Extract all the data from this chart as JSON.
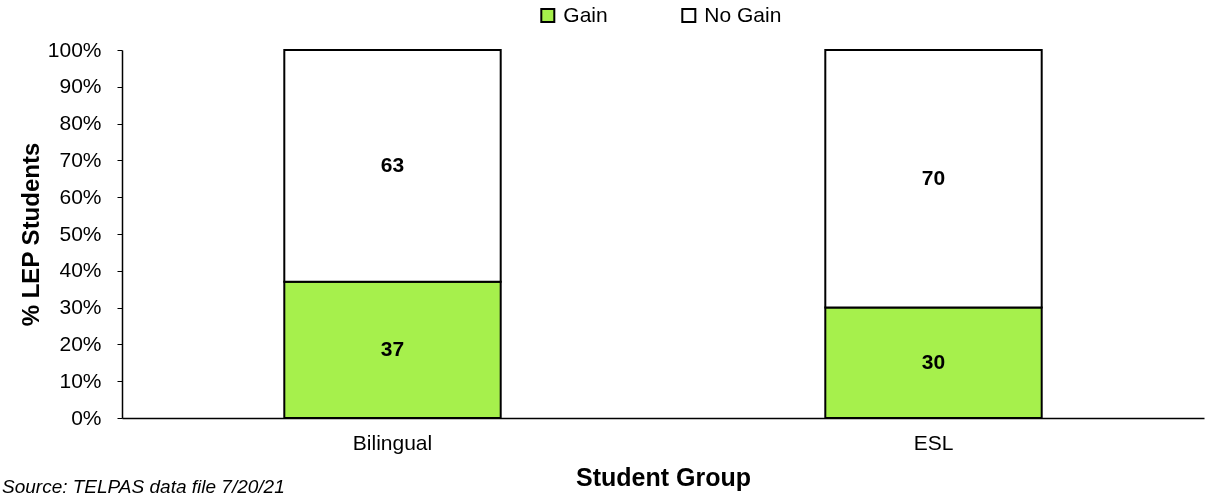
{
  "chart_data": {
    "type": "bar",
    "stacked": true,
    "categories": [
      "Bilingual",
      "ESL"
    ],
    "series": [
      {
        "name": "Gain",
        "color": "#a6f04c",
        "values": [
          37,
          30
        ]
      },
      {
        "name": "No Gain",
        "color": "#ffffff",
        "values": [
          63,
          70
        ]
      }
    ],
    "xlabel": "Student Group",
    "ylabel": "% LEP Students",
    "ylim": [
      0,
      100
    ],
    "yticks": [
      {
        "value": 0,
        "label": "0%"
      },
      {
        "value": 10,
        "label": "10%"
      },
      {
        "value": 20,
        "label": "20%"
      },
      {
        "value": 30,
        "label": "30%"
      },
      {
        "value": 40,
        "label": "40%"
      },
      {
        "value": 50,
        "label": "50%"
      },
      {
        "value": 60,
        "label": "60%"
      },
      {
        "value": 70,
        "label": "70%"
      },
      {
        "value": 80,
        "label": "80%"
      },
      {
        "value": 90,
        "label": "90%"
      },
      {
        "value": 100,
        "label": "100%"
      }
    ],
    "data_labels": true,
    "legend": "top",
    "grid": false,
    "annotations": [
      "Source: TELPAS data file 7/20/21"
    ]
  }
}
